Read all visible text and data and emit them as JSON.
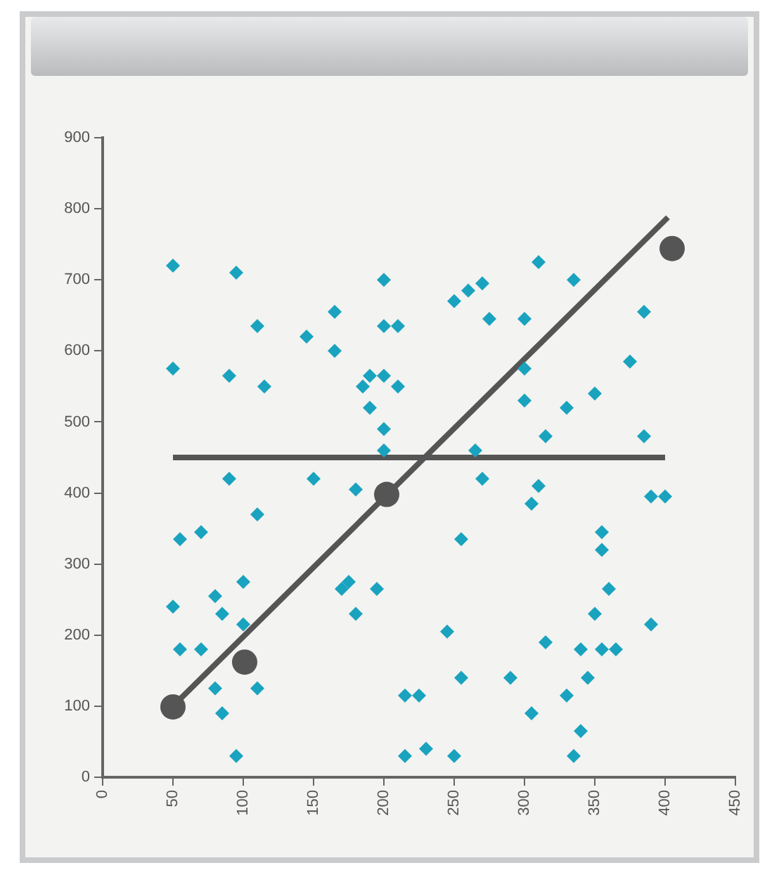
{
  "chart_data": {
    "type": "scatter",
    "xlim": [
      0,
      450
    ],
    "ylim": [
      0,
      900
    ],
    "xticks": [
      0,
      50,
      100,
      150,
      200,
      250,
      300,
      350,
      400,
      450
    ],
    "yticks": [
      0,
      100,
      200,
      300,
      400,
      500,
      600,
      700,
      800,
      900
    ],
    "grid": false,
    "legend": false,
    "series": [
      {
        "marker": "diamond",
        "color": "#1aa3bf",
        "x": [
          50,
          50,
          55,
          50,
          55,
          70,
          70,
          80,
          80,
          85,
          85,
          90,
          90,
          95,
          95,
          100,
          100,
          110,
          110,
          110,
          115,
          145,
          150,
          165,
          165,
          170,
          175,
          180,
          180,
          185,
          190,
          190,
          195,
          200,
          200,
          200,
          200,
          200,
          210,
          210,
          215,
          215,
          225,
          230,
          245,
          250,
          250,
          255,
          255,
          260,
          265,
          270,
          270,
          275,
          290,
          300,
          300,
          300,
          305,
          305,
          310,
          310,
          315,
          315,
          330,
          330,
          335,
          335,
          340,
          340,
          345,
          350,
          350,
          355,
          355,
          355,
          360,
          365,
          375,
          385,
          385,
          390,
          390,
          400
        ],
        "values": [
          720,
          575,
          335,
          240,
          180,
          345,
          180,
          255,
          125,
          90,
          230,
          420,
          565,
          710,
          30,
          215,
          275,
          635,
          370,
          125,
          550,
          620,
          420,
          655,
          600,
          265,
          275,
          230,
          405,
          550,
          565,
          520,
          265,
          700,
          565,
          635,
          490,
          460,
          550,
          635,
          115,
          30,
          115,
          40,
          205,
          670,
          30,
          335,
          140,
          685,
          460,
          695,
          420,
          645,
          140,
          645,
          575,
          530,
          90,
          385,
          410,
          725,
          190,
          480,
          115,
          520,
          700,
          30,
          180,
          65,
          140,
          230,
          540,
          345,
          320,
          180,
          265,
          180,
          585,
          655,
          480,
          215,
          395,
          395
        ]
      },
      {
        "type": "line",
        "marker": "none",
        "color": "#555555",
        "x": [
          50,
          402
        ],
        "values": [
          100,
          788
        ]
      },
      {
        "type": "line",
        "marker": "none",
        "color": "#555555",
        "x": [
          50,
          400
        ],
        "values": [
          450,
          450
        ]
      },
      {
        "marker": "circle",
        "color": "#555555",
        "x": [
          50,
          101,
          202,
          405
        ],
        "values": [
          99,
          162,
          398,
          744
        ]
      }
    ]
  }
}
